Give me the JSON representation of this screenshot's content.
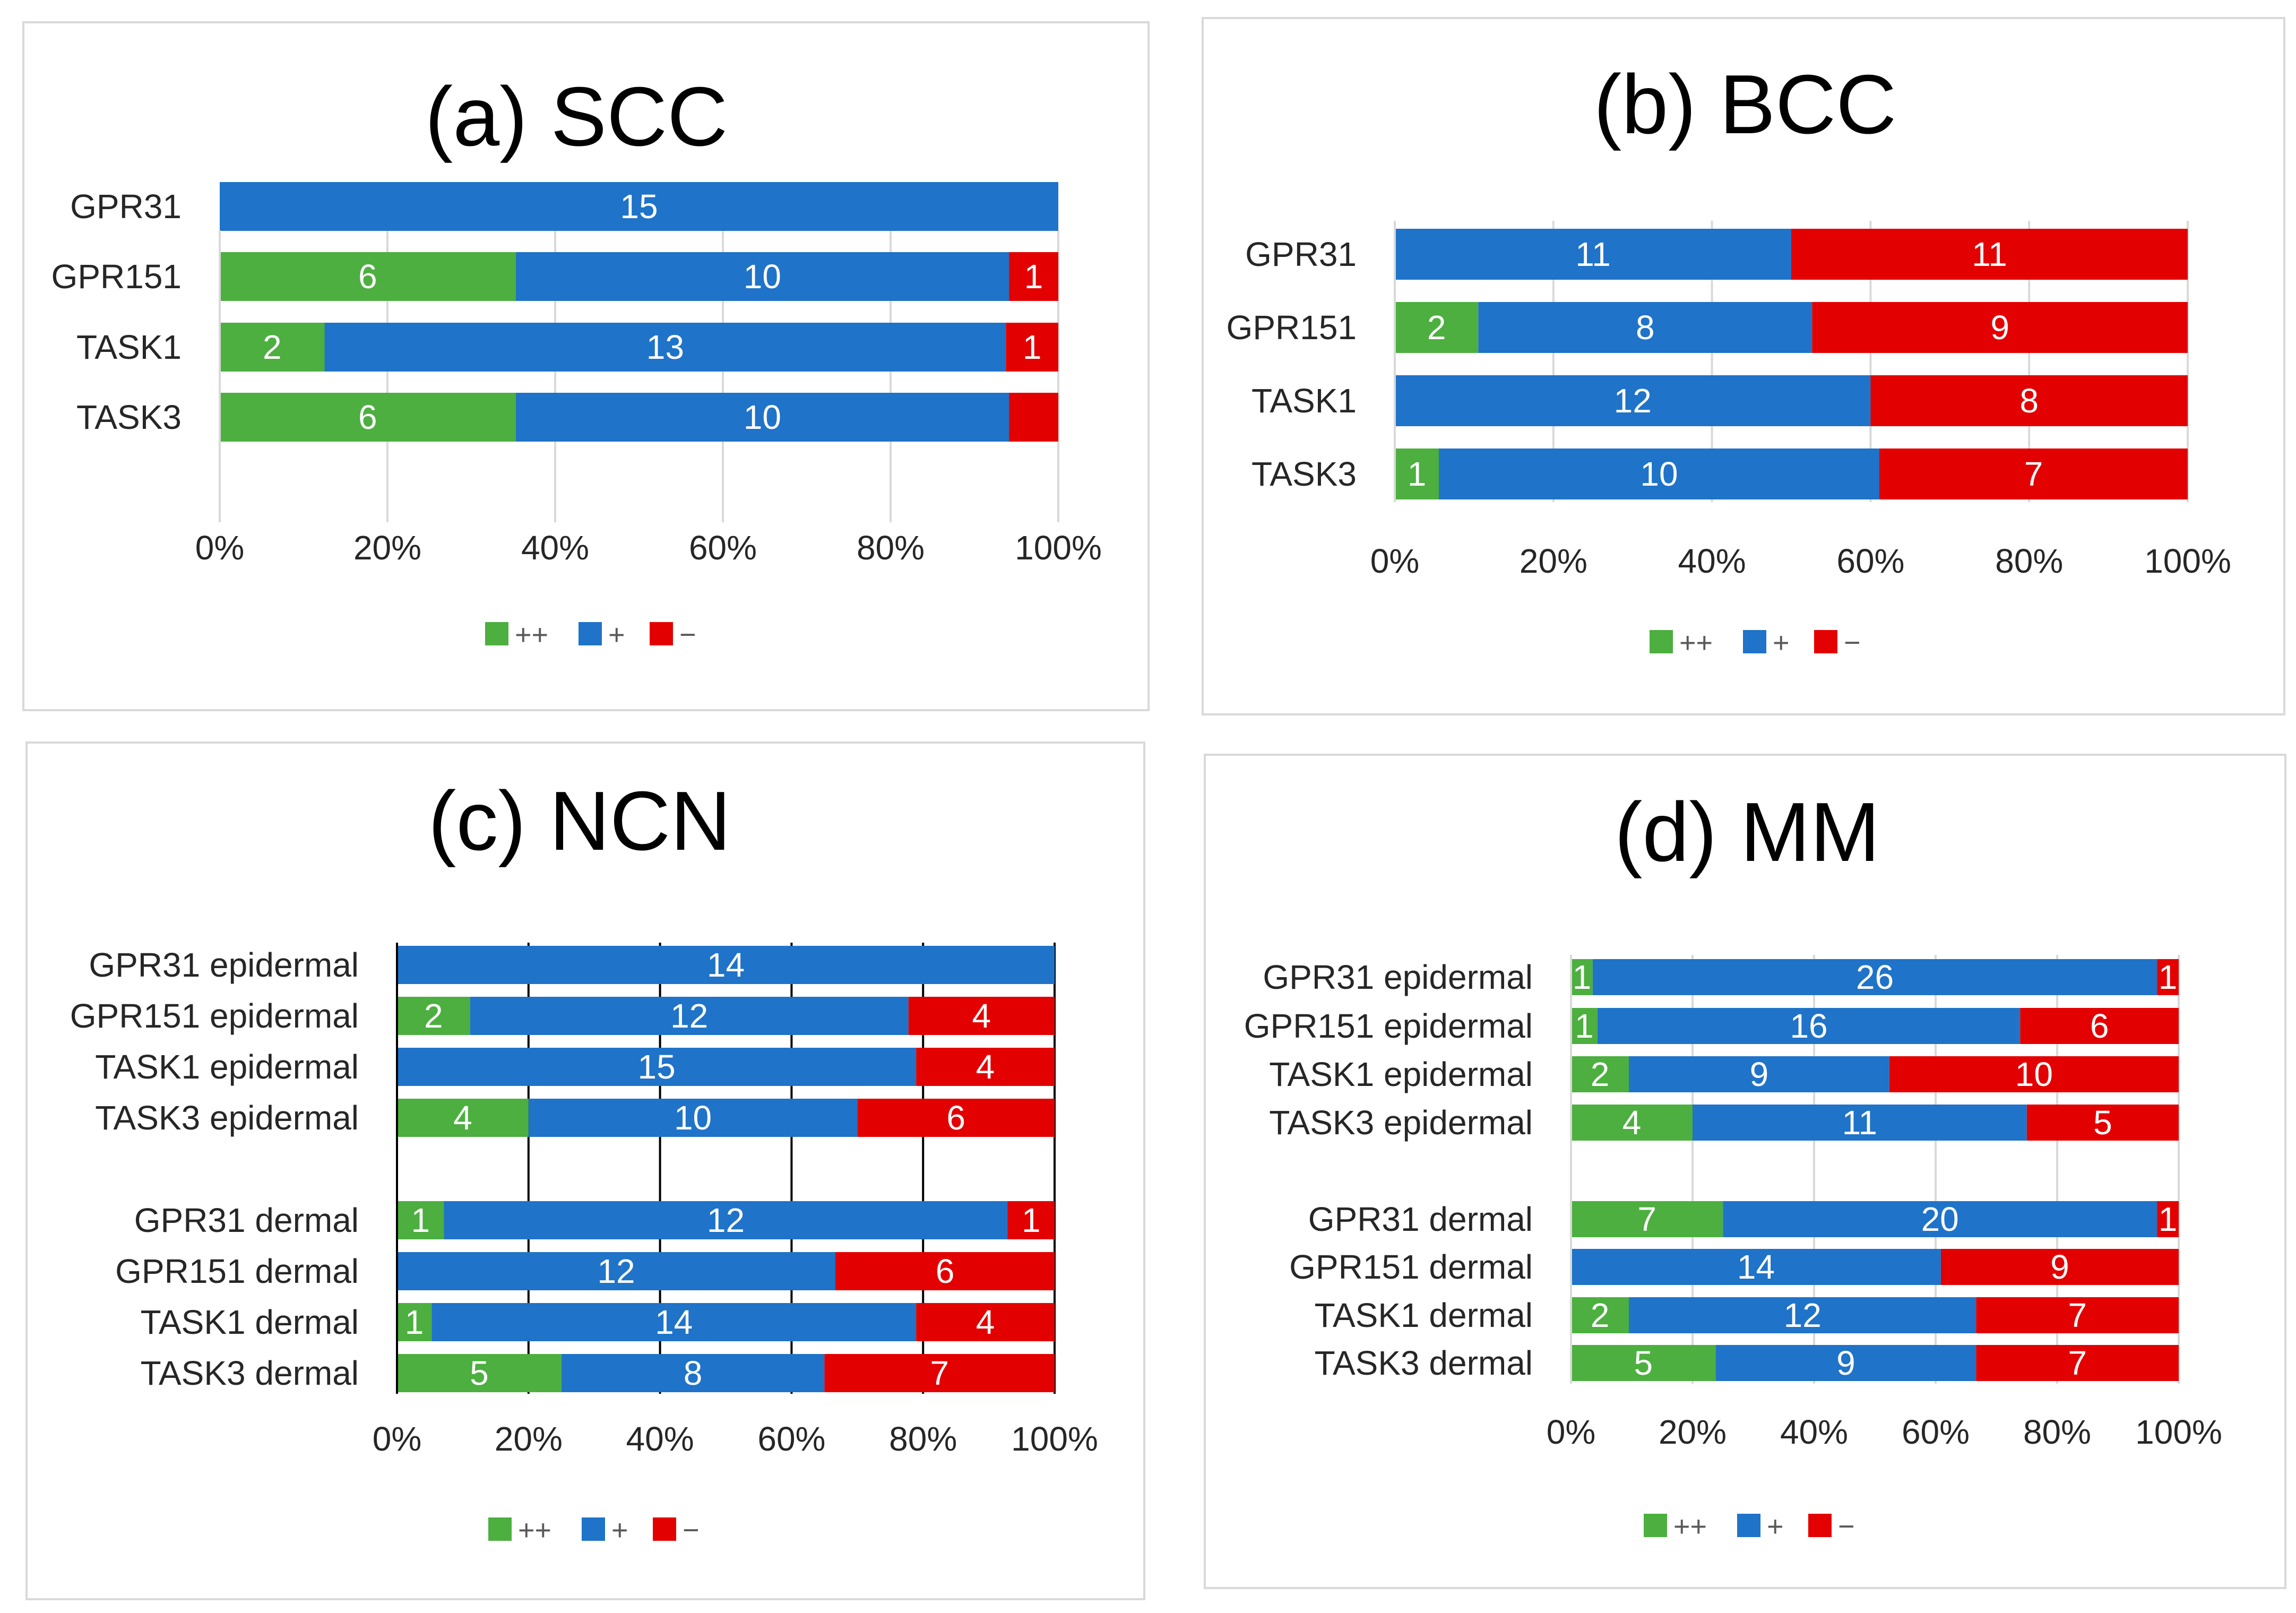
{
  "colors": {
    "pp": "#4caf3f",
    "p": "#1f73c8",
    "m": "#e30000"
  },
  "ticks": [
    "0%",
    "20%",
    "40%",
    "60%",
    "80%",
    "100%"
  ],
  "chart_data": [
    {
      "id": "a",
      "type": "bar",
      "orientation": "horizontal",
      "stacked": "percent",
      "title": "(a) SCC",
      "categories": [
        "GPR31",
        "GPR151",
        "TASK1",
        "TASK3"
      ],
      "series": [
        {
          "name": "++",
          "values": [
            0,
            6,
            2,
            6
          ],
          "labels": [
            "",
            "6",
            "2",
            "6"
          ]
        },
        {
          "name": "+",
          "values": [
            15,
            10,
            13,
            10
          ],
          "labels": [
            "15",
            "10",
            "13",
            "10"
          ]
        },
        {
          "name": "−",
          "values": [
            0,
            1,
            1,
            1
          ],
          "labels": [
            "",
            "1",
            "1",
            ""
          ]
        }
      ],
      "xlim": [
        0,
        100
      ],
      "legend": "bottom",
      "grid": "light"
    },
    {
      "id": "b",
      "type": "bar",
      "orientation": "horizontal",
      "stacked": "percent",
      "title": "(b) BCC",
      "categories": [
        "GPR31",
        "GPR151",
        "TASK1",
        "TASK3"
      ],
      "series": [
        {
          "name": "++",
          "values": [
            0,
            2,
            0,
            1
          ],
          "labels": [
            "",
            "2",
            "",
            "1"
          ]
        },
        {
          "name": "+",
          "values": [
            11,
            8,
            12,
            10
          ],
          "labels": [
            "11",
            "8",
            "12",
            "10"
          ]
        },
        {
          "name": "−",
          "values": [
            11,
            9,
            8,
            7
          ],
          "labels": [
            "11",
            "9",
            "8",
            "7"
          ]
        }
      ],
      "xlim": [
        0,
        100
      ],
      "legend": "bottom",
      "grid": "light"
    },
    {
      "id": "c",
      "type": "bar",
      "orientation": "horizontal",
      "stacked": "percent",
      "title": "(c) NCN",
      "categories": [
        "GPR31 epidermal",
        "GPR151 epidermal",
        "TASK1 epidermal",
        "TASK3 epidermal",
        "GPR31 dermal",
        "GPR151 dermal",
        "TASK1 dermal",
        "TASK3 dermal"
      ],
      "series": [
        {
          "name": "++",
          "values": [
            0,
            2,
            0,
            4,
            1,
            0,
            1,
            5
          ],
          "labels": [
            "",
            "2",
            "",
            "4",
            "1",
            "",
            "1",
            "5"
          ]
        },
        {
          "name": "+",
          "values": [
            14,
            12,
            15,
            10,
            12,
            12,
            14,
            8
          ],
          "labels": [
            "14",
            "12",
            "15",
            "10",
            "12",
            "12",
            "14",
            "8"
          ]
        },
        {
          "name": "−",
          "values": [
            0,
            4,
            4,
            6,
            1,
            6,
            4,
            7
          ],
          "labels": [
            "",
            "4",
            "4",
            "6",
            "1",
            "6",
            "4",
            "7"
          ]
        }
      ],
      "xlim": [
        0,
        100
      ],
      "legend": "bottom",
      "grid": "dark"
    },
    {
      "id": "d",
      "type": "bar",
      "orientation": "horizontal",
      "stacked": "percent",
      "title": "(d) MM",
      "categories": [
        "GPR31 epidermal",
        "GPR151 epidermal",
        "TASK1 epidermal",
        "TASK3 epidermal",
        "GPR31 dermal",
        "GPR151 dermal",
        "TASK1 dermal",
        "TASK3 dermal"
      ],
      "series": [
        {
          "name": "++",
          "values": [
            1,
            1,
            2,
            4,
            7,
            0,
            2,
            5
          ],
          "labels": [
            "1",
            "1",
            "2",
            "4",
            "7",
            "",
            "2",
            "5"
          ]
        },
        {
          "name": "+",
          "values": [
            26,
            16,
            9,
            11,
            20,
            14,
            12,
            9
          ],
          "labels": [
            "26",
            "16",
            "9",
            "11",
            "20",
            "14",
            "12",
            "9"
          ]
        },
        {
          "name": "−",
          "values": [
            1,
            6,
            10,
            5,
            1,
            9,
            7,
            7
          ],
          "labels": [
            "1",
            "6",
            "10",
            "5",
            "1",
            "9",
            "7",
            "7"
          ]
        }
      ],
      "xlim": [
        0,
        100
      ],
      "legend": "bottom",
      "grid": "light"
    }
  ]
}
